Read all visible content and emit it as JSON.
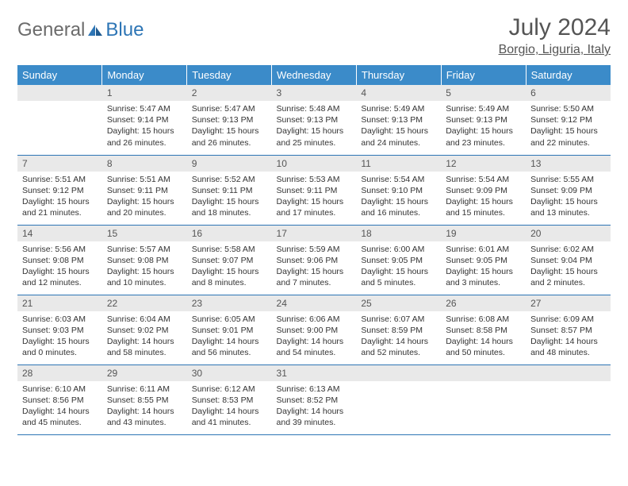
{
  "brand": {
    "part1": "General",
    "part2": "Blue"
  },
  "title": "July 2024",
  "location": "Borgio, Liguria, Italy",
  "colors": {
    "header_bg": "#3b8bc9",
    "header_text": "#ffffff",
    "daynum_bg": "#e9e9e9",
    "border": "#2d75b5",
    "brand_gray": "#6b6b6b",
    "brand_blue": "#2d75b5"
  },
  "weekdays": [
    "Sunday",
    "Monday",
    "Tuesday",
    "Wednesday",
    "Thursday",
    "Friday",
    "Saturday"
  ],
  "weeks": [
    [
      {
        "day": "",
        "sunrise": "",
        "sunset": "",
        "daylight": ""
      },
      {
        "day": "1",
        "sunrise": "5:47 AM",
        "sunset": "9:14 PM",
        "daylight": "15 hours and 26 minutes."
      },
      {
        "day": "2",
        "sunrise": "5:47 AM",
        "sunset": "9:13 PM",
        "daylight": "15 hours and 26 minutes."
      },
      {
        "day": "3",
        "sunrise": "5:48 AM",
        "sunset": "9:13 PM",
        "daylight": "15 hours and 25 minutes."
      },
      {
        "day": "4",
        "sunrise": "5:49 AM",
        "sunset": "9:13 PM",
        "daylight": "15 hours and 24 minutes."
      },
      {
        "day": "5",
        "sunrise": "5:49 AM",
        "sunset": "9:13 PM",
        "daylight": "15 hours and 23 minutes."
      },
      {
        "day": "6",
        "sunrise": "5:50 AM",
        "sunset": "9:12 PM",
        "daylight": "15 hours and 22 minutes."
      }
    ],
    [
      {
        "day": "7",
        "sunrise": "5:51 AM",
        "sunset": "9:12 PM",
        "daylight": "15 hours and 21 minutes."
      },
      {
        "day": "8",
        "sunrise": "5:51 AM",
        "sunset": "9:11 PM",
        "daylight": "15 hours and 20 minutes."
      },
      {
        "day": "9",
        "sunrise": "5:52 AM",
        "sunset": "9:11 PM",
        "daylight": "15 hours and 18 minutes."
      },
      {
        "day": "10",
        "sunrise": "5:53 AM",
        "sunset": "9:11 PM",
        "daylight": "15 hours and 17 minutes."
      },
      {
        "day": "11",
        "sunrise": "5:54 AM",
        "sunset": "9:10 PM",
        "daylight": "15 hours and 16 minutes."
      },
      {
        "day": "12",
        "sunrise": "5:54 AM",
        "sunset": "9:09 PM",
        "daylight": "15 hours and 15 minutes."
      },
      {
        "day": "13",
        "sunrise": "5:55 AM",
        "sunset": "9:09 PM",
        "daylight": "15 hours and 13 minutes."
      }
    ],
    [
      {
        "day": "14",
        "sunrise": "5:56 AM",
        "sunset": "9:08 PM",
        "daylight": "15 hours and 12 minutes."
      },
      {
        "day": "15",
        "sunrise": "5:57 AM",
        "sunset": "9:08 PM",
        "daylight": "15 hours and 10 minutes."
      },
      {
        "day": "16",
        "sunrise": "5:58 AM",
        "sunset": "9:07 PM",
        "daylight": "15 hours and 8 minutes."
      },
      {
        "day": "17",
        "sunrise": "5:59 AM",
        "sunset": "9:06 PM",
        "daylight": "15 hours and 7 minutes."
      },
      {
        "day": "18",
        "sunrise": "6:00 AM",
        "sunset": "9:05 PM",
        "daylight": "15 hours and 5 minutes."
      },
      {
        "day": "19",
        "sunrise": "6:01 AM",
        "sunset": "9:05 PM",
        "daylight": "15 hours and 3 minutes."
      },
      {
        "day": "20",
        "sunrise": "6:02 AM",
        "sunset": "9:04 PM",
        "daylight": "15 hours and 2 minutes."
      }
    ],
    [
      {
        "day": "21",
        "sunrise": "6:03 AM",
        "sunset": "9:03 PM",
        "daylight": "15 hours and 0 minutes."
      },
      {
        "day": "22",
        "sunrise": "6:04 AM",
        "sunset": "9:02 PM",
        "daylight": "14 hours and 58 minutes."
      },
      {
        "day": "23",
        "sunrise": "6:05 AM",
        "sunset": "9:01 PM",
        "daylight": "14 hours and 56 minutes."
      },
      {
        "day": "24",
        "sunrise": "6:06 AM",
        "sunset": "9:00 PM",
        "daylight": "14 hours and 54 minutes."
      },
      {
        "day": "25",
        "sunrise": "6:07 AM",
        "sunset": "8:59 PM",
        "daylight": "14 hours and 52 minutes."
      },
      {
        "day": "26",
        "sunrise": "6:08 AM",
        "sunset": "8:58 PM",
        "daylight": "14 hours and 50 minutes."
      },
      {
        "day": "27",
        "sunrise": "6:09 AM",
        "sunset": "8:57 PM",
        "daylight": "14 hours and 48 minutes."
      }
    ],
    [
      {
        "day": "28",
        "sunrise": "6:10 AM",
        "sunset": "8:56 PM",
        "daylight": "14 hours and 45 minutes."
      },
      {
        "day": "29",
        "sunrise": "6:11 AM",
        "sunset": "8:55 PM",
        "daylight": "14 hours and 43 minutes."
      },
      {
        "day": "30",
        "sunrise": "6:12 AM",
        "sunset": "8:53 PM",
        "daylight": "14 hours and 41 minutes."
      },
      {
        "day": "31",
        "sunrise": "6:13 AM",
        "sunset": "8:52 PM",
        "daylight": "14 hours and 39 minutes."
      },
      {
        "day": "",
        "sunrise": "",
        "sunset": "",
        "daylight": ""
      },
      {
        "day": "",
        "sunrise": "",
        "sunset": "",
        "daylight": ""
      },
      {
        "day": "",
        "sunrise": "",
        "sunset": "",
        "daylight": ""
      }
    ]
  ],
  "labels": {
    "sunrise": "Sunrise:",
    "sunset": "Sunset:",
    "daylight": "Daylight:"
  }
}
